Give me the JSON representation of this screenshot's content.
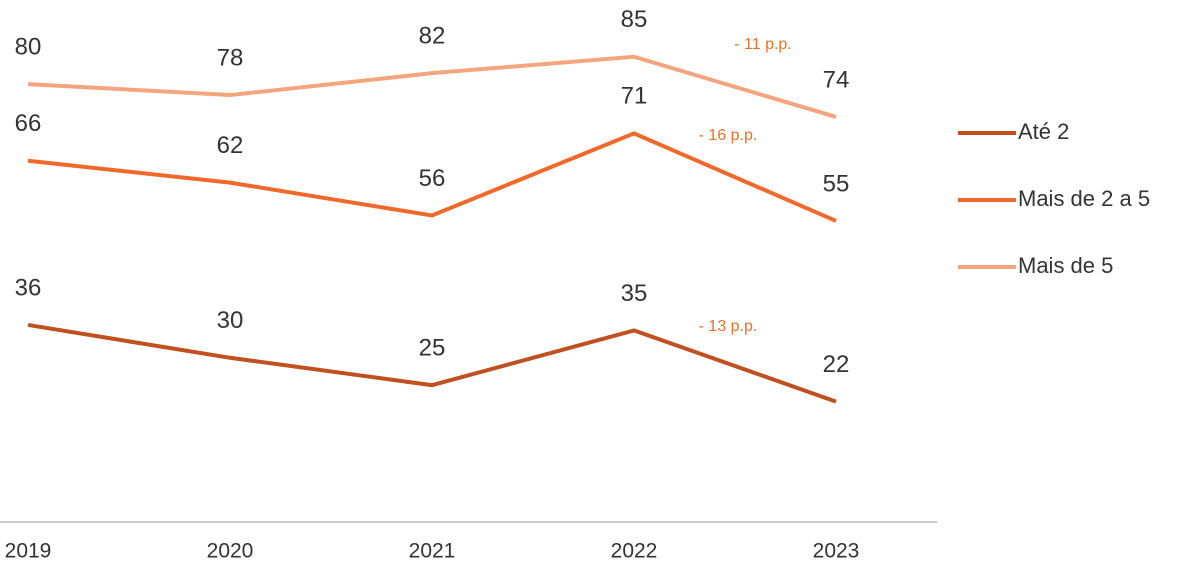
{
  "chart_data": {
    "type": "line",
    "categories": [
      "2019",
      "2020",
      "2021",
      "2022",
      "2023"
    ],
    "series": [
      {
        "name": "Até 2",
        "color": "#c0501f",
        "values": [
          36,
          30,
          25,
          35,
          22
        ]
      },
      {
        "name": "Mais de 2 a 5",
        "color": "#f0692a",
        "values": [
          66,
          62,
          56,
          71,
          55
        ]
      },
      {
        "name": "Mais de 5",
        "color": "#f4a57e",
        "values": [
          80,
          78,
          82,
          85,
          74
        ]
      }
    ],
    "annotations": [
      "- 13 p.p.",
      "- 16 p.p.",
      "- 11 p.p."
    ],
    "ylim": [
      0,
      95
    ],
    "legend": "right"
  }
}
